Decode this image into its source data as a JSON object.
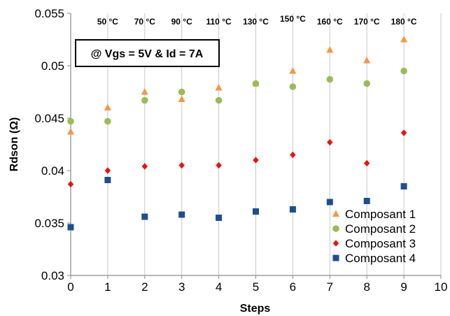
{
  "chart_data": {
    "type": "scatter",
    "xlabel": "Steps",
    "ylabel": "Rdson (Ω)",
    "xlim": [
      0,
      10
    ],
    "ylim": [
      0.03,
      0.055
    ],
    "x_ticks": [
      "0",
      "1",
      "2",
      "3",
      "4",
      "5",
      "6",
      "7",
      "8",
      "9",
      "10"
    ],
    "y_ticks": [
      "0.03",
      "0.035",
      "0.04",
      "0.045",
      "0.05",
      "0.055"
    ],
    "grid": "vertical",
    "legend_position": "bottom-right",
    "condition_box": "@ Vgs = 5V & Id = 7A",
    "temperature_labels": [
      {
        "step": 1,
        "text": "50 °C"
      },
      {
        "step": 2,
        "text": "70 °C"
      },
      {
        "step": 3,
        "text": "90 °C"
      },
      {
        "step": 4,
        "text": "110 °C"
      },
      {
        "step": 5,
        "text": "130 °C"
      },
      {
        "step": 6,
        "text": "150 °C"
      },
      {
        "step": 7,
        "text": "160 °C"
      },
      {
        "step": 8,
        "text": "170 °C"
      },
      {
        "step": 9,
        "text": "180 °C"
      }
    ],
    "series": [
      {
        "name": "Composant 1",
        "marker": "triangle",
        "color": "#F79646",
        "x": [
          0,
          1,
          2,
          3,
          4,
          5,
          6,
          7,
          8,
          9
        ],
        "y": [
          0.0437,
          0.046,
          0.0475,
          0.0468,
          0.0479,
          0.0483,
          0.0495,
          0.0515,
          0.0505,
          0.0525
        ]
      },
      {
        "name": "Composant 2",
        "marker": "circle",
        "color": "#9BBB59",
        "x": [
          0,
          1,
          2,
          3,
          4,
          5,
          6,
          7,
          8,
          9
        ],
        "y": [
          0.0447,
          0.0447,
          0.0467,
          0.0475,
          0.0467,
          0.0483,
          0.048,
          0.0487,
          0.0483,
          0.0495
        ]
      },
      {
        "name": "Composant 3",
        "marker": "diamond",
        "color": "#E8130F",
        "x": [
          0,
          1,
          2,
          3,
          4,
          5,
          6,
          7,
          8,
          9
        ],
        "y": [
          0.0387,
          0.04,
          0.0404,
          0.0405,
          0.0405,
          0.041,
          0.0415,
          0.0427,
          0.0407,
          0.0436
        ]
      },
      {
        "name": "Composant 4",
        "marker": "square",
        "color": "#1F4E8C",
        "x": [
          0,
          1,
          2,
          3,
          4,
          5,
          6,
          7,
          8,
          9
        ],
        "y": [
          0.0346,
          0.0391,
          0.0356,
          0.0358,
          0.0355,
          0.0361,
          0.0363,
          0.037,
          0.0371,
          0.0385
        ]
      }
    ]
  }
}
